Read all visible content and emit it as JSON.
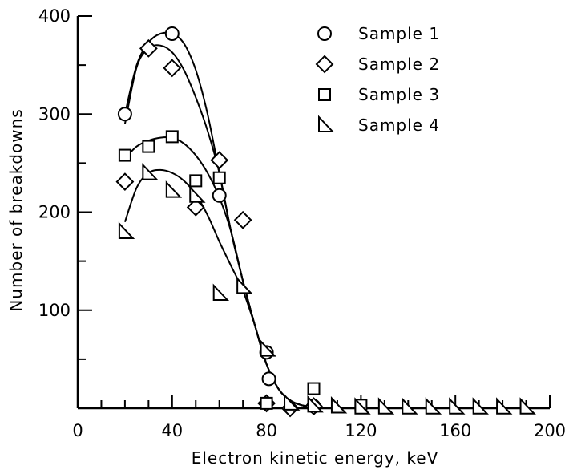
{
  "chart_data": {
    "type": "scatter",
    "xlabel": "Electron kinetic energy, keV",
    "ylabel": "Number of breakdowns",
    "xlim": [
      0,
      200
    ],
    "ylim": [
      0,
      400
    ],
    "x_ticks": [
      "0",
      "40",
      "80",
      "120",
      "160",
      "200"
    ],
    "x_tick_values": [
      0,
      40,
      80,
      120,
      160,
      200
    ],
    "y_ticks": [
      "100",
      "200",
      "300",
      "400"
    ],
    "y_tick_values": [
      100,
      200,
      300,
      400
    ],
    "grid": false,
    "legend_position": "top-right",
    "series": [
      {
        "name": "Sample 1",
        "marker": "circle",
        "points": [
          [
            20,
            300
          ],
          [
            40,
            382
          ],
          [
            60,
            217
          ],
          [
            80,
            57
          ],
          [
            81,
            30
          ],
          [
            100,
            2
          ]
        ],
        "curve": [
          [
            20,
            300
          ],
          [
            25,
            350
          ],
          [
            30,
            373
          ],
          [
            35,
            382
          ],
          [
            40,
            382
          ],
          [
            45,
            372
          ],
          [
            50,
            345
          ],
          [
            55,
            300
          ],
          [
            60,
            240
          ],
          [
            65,
            180
          ],
          [
            70,
            130
          ],
          [
            75,
            85
          ],
          [
            80,
            45
          ],
          [
            85,
            20
          ],
          [
            90,
            8
          ],
          [
            95,
            3
          ],
          [
            100,
            1
          ]
        ]
      },
      {
        "name": "Sample 2",
        "marker": "diamond",
        "points": [
          [
            20,
            231
          ],
          [
            30,
            367
          ],
          [
            40,
            347
          ],
          [
            50,
            205
          ],
          [
            60,
            253
          ],
          [
            70,
            192
          ],
          [
            80,
            5
          ],
          [
            90,
            0
          ],
          [
            100,
            2
          ]
        ],
        "curve": [
          [
            20,
            290
          ],
          [
            25,
            348
          ],
          [
            30,
            367
          ],
          [
            35,
            370
          ],
          [
            40,
            363
          ],
          [
            45,
            345
          ],
          [
            50,
            317
          ],
          [
            55,
            283
          ],
          [
            60,
            240
          ],
          [
            65,
            180
          ],
          [
            70,
            130
          ],
          [
            75,
            85
          ],
          [
            80,
            45
          ],
          [
            85,
            20
          ],
          [
            90,
            8
          ],
          [
            95,
            3
          ],
          [
            100,
            1
          ]
        ]
      },
      {
        "name": "Sample 3",
        "marker": "square",
        "points": [
          [
            20,
            258
          ],
          [
            30,
            267
          ],
          [
            40,
            277
          ],
          [
            50,
            232
          ],
          [
            60,
            235
          ],
          [
            80,
            5
          ],
          [
            100,
            20
          ],
          [
            120,
            3
          ]
        ],
        "curve": [
          [
            20,
            255
          ],
          [
            25,
            267
          ],
          [
            30,
            273
          ],
          [
            35,
            276
          ],
          [
            40,
            276
          ],
          [
            45,
            270
          ],
          [
            50,
            258
          ],
          [
            55,
            240
          ],
          [
            60,
            215
          ],
          [
            65,
            180
          ],
          [
            70,
            130
          ],
          [
            75,
            85
          ],
          [
            80,
            45
          ],
          [
            85,
            20
          ],
          [
            90,
            8
          ],
          [
            95,
            3
          ],
          [
            100,
            1
          ]
        ]
      },
      {
        "name": "Sample 4",
        "marker": "triangle",
        "points": [
          [
            20,
            180
          ],
          [
            30,
            240
          ],
          [
            40,
            222
          ],
          [
            50,
            217
          ],
          [
            60,
            117
          ],
          [
            70,
            124
          ],
          [
            80,
            60
          ],
          [
            90,
            5
          ],
          [
            100,
            3
          ],
          [
            110,
            2
          ],
          [
            120,
            1
          ],
          [
            130,
            1
          ],
          [
            140,
            1
          ],
          [
            150,
            1
          ],
          [
            160,
            1
          ],
          [
            170,
            1
          ],
          [
            180,
            1
          ],
          [
            190,
            1
          ]
        ],
        "curve": [
          [
            20,
            190
          ],
          [
            25,
            225
          ],
          [
            30,
            240
          ],
          [
            35,
            243
          ],
          [
            40,
            240
          ],
          [
            45,
            232
          ],
          [
            50,
            218
          ],
          [
            55,
            197
          ],
          [
            60,
            170
          ],
          [
            65,
            145
          ],
          [
            70,
            120
          ],
          [
            75,
            85
          ],
          [
            80,
            45
          ],
          [
            85,
            20
          ],
          [
            90,
            8
          ],
          [
            95,
            3
          ],
          [
            100,
            1
          ]
        ]
      }
    ]
  }
}
